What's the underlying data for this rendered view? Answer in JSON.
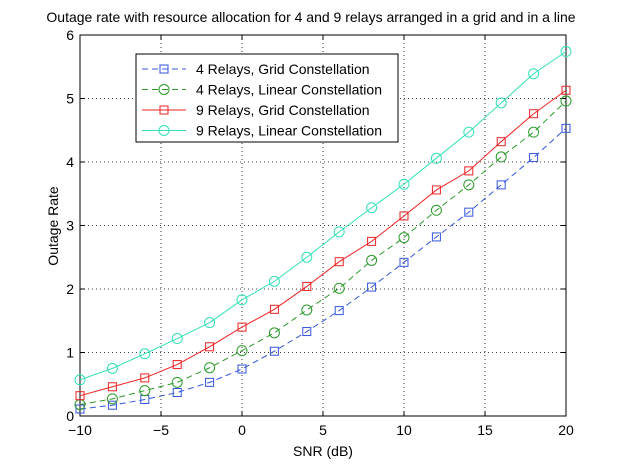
{
  "chart_data": {
    "type": "line",
    "title": "Outage rate with resource allocation for 4 and 9 relays arranged in a grid and in a line",
    "xlabel": "SNR (dB)",
    "ylabel": "Outage Rate",
    "xlim": [
      -10,
      20
    ],
    "ylim": [
      0,
      6
    ],
    "grid": true,
    "legend_position": "top-left",
    "x_ticks": [
      -10,
      -5,
      0,
      5,
      10,
      15,
      20
    ],
    "x_tick_labels": [
      "−10",
      "−5",
      "0",
      "5",
      "10",
      "15",
      "20"
    ],
    "y_ticks": [
      0,
      1,
      2,
      3,
      4,
      5,
      6
    ],
    "y_tick_labels": [
      "0",
      "1",
      "2",
      "3",
      "4",
      "5",
      "6"
    ],
    "x": [
      -10,
      -8,
      -6,
      -4,
      -2,
      0,
      2,
      4,
      6,
      8,
      10,
      12,
      14,
      16,
      18,
      20
    ],
    "series": [
      {
        "name": "4 Relays, Grid Constellation",
        "color": "#3355dd",
        "line_style": "dashed",
        "marker": "square",
        "values": [
          0.11,
          0.17,
          0.26,
          0.37,
          0.53,
          0.74,
          1.02,
          1.33,
          1.66,
          2.03,
          2.42,
          2.82,
          3.21,
          3.64,
          4.07,
          4.53
        ]
      },
      {
        "name": "4 Relays, Linear Constellation",
        "color": "#2a9a2a",
        "line_style": "dashed",
        "marker": "circle",
        "values": [
          0.18,
          0.27,
          0.4,
          0.53,
          0.76,
          1.03,
          1.31,
          1.67,
          2.01,
          2.45,
          2.81,
          3.24,
          3.64,
          4.08,
          4.47,
          4.96
        ]
      },
      {
        "name": "9 Relays, Grid Constellation",
        "color": "#ee2222",
        "line_style": "solid",
        "marker": "square",
        "values": [
          0.32,
          0.46,
          0.6,
          0.81,
          1.09,
          1.4,
          1.68,
          2.04,
          2.43,
          2.75,
          3.15,
          3.56,
          3.86,
          4.32,
          4.76,
          5.13
        ]
      },
      {
        "name": "9 Relays, Linear Constellation",
        "color": "#33e0b8",
        "line_style": "solid",
        "marker": "circle",
        "values": [
          0.57,
          0.75,
          0.98,
          1.22,
          1.47,
          1.83,
          2.12,
          2.5,
          2.9,
          3.28,
          3.65,
          4.06,
          4.47,
          4.93,
          5.39,
          5.74
        ]
      }
    ]
  }
}
